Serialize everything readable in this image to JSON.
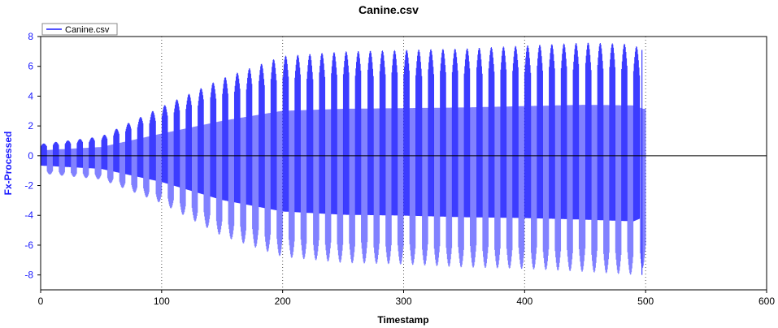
{
  "chart_data": {
    "type": "line",
    "title": "Canine.csv",
    "xlabel": "Timestamp",
    "ylabel": "Fx-Processed",
    "xlim": [
      0,
      600
    ],
    "ylim": [
      -9,
      8
    ],
    "x_ticks": [
      "0",
      "100",
      "200",
      "300",
      "400",
      "500",
      "600"
    ],
    "y_ticks": [
      "8",
      "6",
      "4",
      "2",
      "0",
      "-2",
      "-4",
      "-6",
      "-8"
    ],
    "legend": {
      "placement": "top-left",
      "entries": [
        "Canine.csv"
      ]
    },
    "grid": {
      "vertical_dotted_at": [
        100,
        200,
        300,
        400,
        500
      ],
      "zero_line": true
    },
    "series": [
      {
        "name": "Canine.csv",
        "color": "#1a1aff",
        "x_range": [
          0,
          500
        ],
        "cycle_period": 10,
        "envelope_x": [
          0,
          50,
          100,
          150,
          200,
          250,
          300,
          350,
          400,
          450,
          490,
          498
        ],
        "envelope_max": [
          0.8,
          1.3,
          3.3,
          5.2,
          6.7,
          7.0,
          7.1,
          7.2,
          7.4,
          7.6,
          7.5,
          7.0
        ],
        "envelope_min": [
          -1.2,
          -1.6,
          -3.2,
          -5.4,
          -6.8,
          -7.2,
          -7.3,
          -7.5,
          -7.6,
          -7.8,
          -8.0,
          -7.5
        ]
      }
    ]
  }
}
